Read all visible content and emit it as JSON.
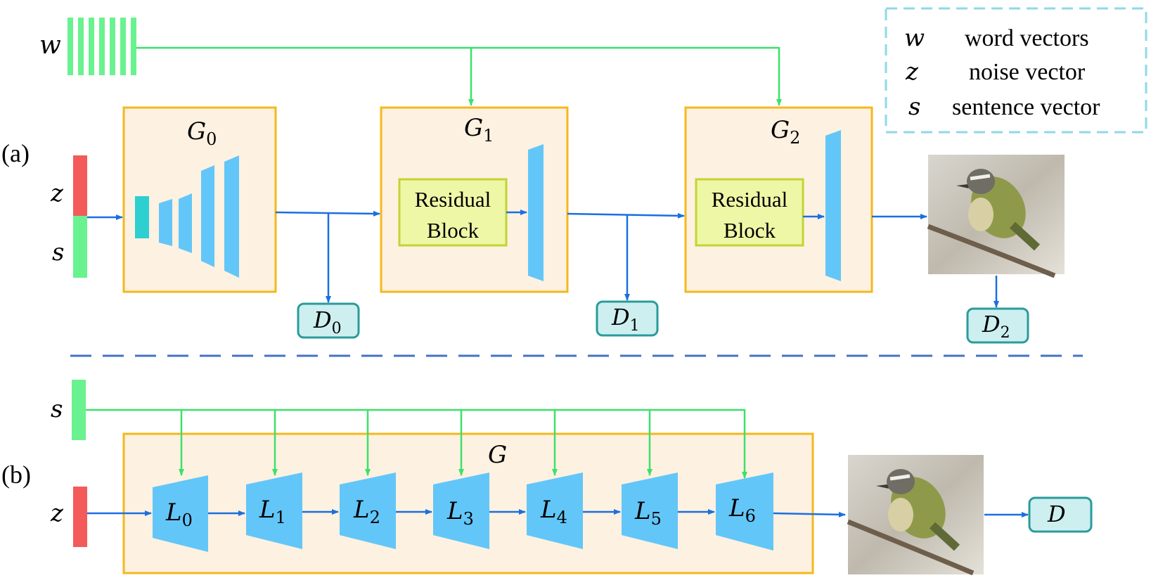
{
  "legend": {
    "rows": [
      {
        "symbol": "w",
        "text": "word vectors"
      },
      {
        "symbol": "z",
        "text": "noise vector"
      },
      {
        "symbol": "s",
        "text": "sentence vector"
      }
    ]
  },
  "part_a": {
    "label": "(a)",
    "w_label": "w",
    "z_label": "z",
    "s_label": "s",
    "generators": [
      {
        "name": "G",
        "sub": "0"
      },
      {
        "name": "G",
        "sub": "1",
        "block_line1": "Residual",
        "block_line2": "Block"
      },
      {
        "name": "G",
        "sub": "2",
        "block_line1": "Residual",
        "block_line2": "Block"
      }
    ],
    "discriminators": [
      {
        "name": "D",
        "sub": "0"
      },
      {
        "name": "D",
        "sub": "1"
      },
      {
        "name": "D",
        "sub": "2"
      }
    ]
  },
  "part_b": {
    "label": "(b)",
    "s_label": "s",
    "z_label": "z",
    "generator_name": "G",
    "layers": [
      {
        "name": "L",
        "sub": "0"
      },
      {
        "name": "L",
        "sub": "1"
      },
      {
        "name": "L",
        "sub": "2"
      },
      {
        "name": "L",
        "sub": "3"
      },
      {
        "name": "L",
        "sub": "4"
      },
      {
        "name": "L",
        "sub": "5"
      },
      {
        "name": "L",
        "sub": "6"
      }
    ],
    "discriminator": {
      "name": "D"
    }
  },
  "colors": {
    "box_fill": "#fdf1e1",
    "box_stroke": "#f5b81c",
    "blue_shape": "#63c6f8",
    "teal_shape": "#2ecfd0",
    "green_arrow": "#3ee06a",
    "blue_arrow": "#1a6fe0",
    "red_vector": "#f35a5a",
    "green_vector": "#69f28f",
    "residual_fill": "#eef7a6",
    "residual_stroke": "#c3d434",
    "disc_fill": "#cdeff0",
    "disc_stroke": "#2a9b9b",
    "legend_stroke": "#8fd9e8",
    "divider": "#4472c4"
  }
}
